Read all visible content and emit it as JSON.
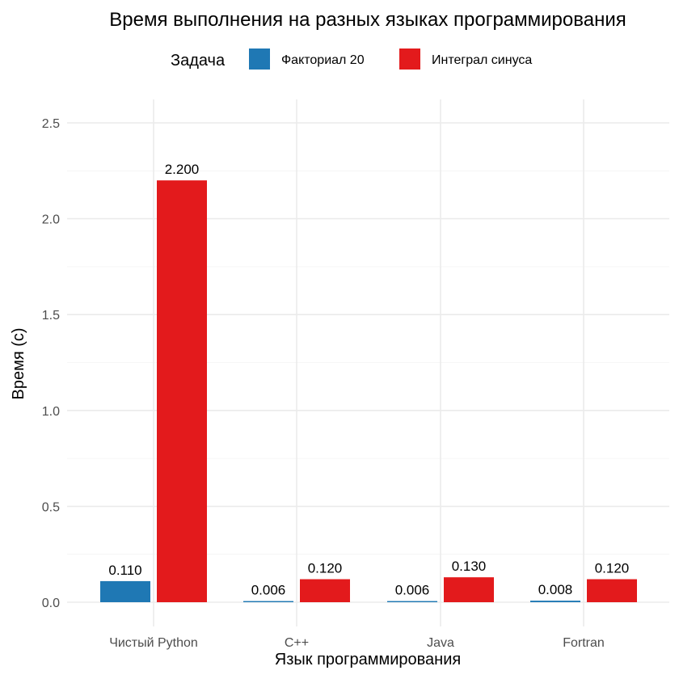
{
  "chart_data": {
    "type": "bar",
    "title": "Время выполнения на разных языках программирования",
    "xlabel": "Язык программирования",
    "ylabel": "Время (с)",
    "categories": [
      "Чистый Python",
      "C++",
      "Java",
      "Fortran"
    ],
    "series": [
      {
        "name": "Факториал 20",
        "values": [
          0.11,
          0.006,
          0.006,
          0.008
        ],
        "labels": [
          "0.110",
          "0.006",
          "0.006",
          "0.008"
        ],
        "color": "#1f78b4"
      },
      {
        "name": "Интеграл синуса",
        "values": [
          2.2,
          0.12,
          0.13,
          0.12
        ],
        "labels": [
          "2.200",
          "0.120",
          "0.130",
          "0.120"
        ],
        "color": "#e31a1c"
      }
    ],
    "ylim": [
      0,
      2.5
    ],
    "yticks": [
      0,
      0.5,
      1.0,
      1.5,
      2.0,
      2.5
    ],
    "ytick_labels": [
      "0.0",
      "0.5",
      "1.0",
      "1.5",
      "2.0",
      "2.5"
    ],
    "legend": {
      "title": "Задача",
      "position": "top"
    },
    "grid": true
  }
}
